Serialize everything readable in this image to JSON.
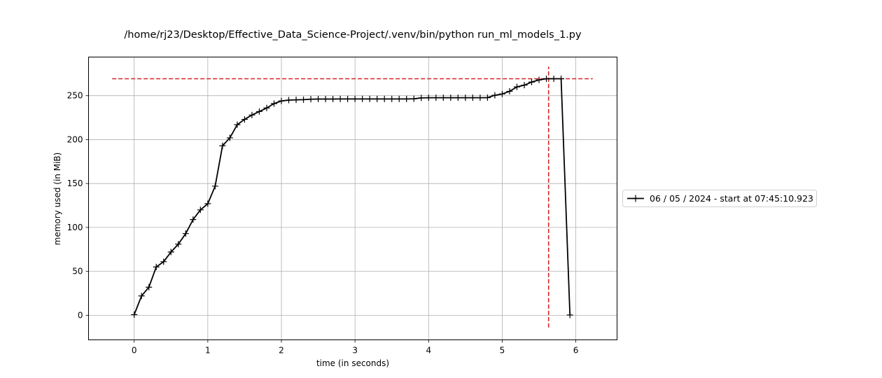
{
  "chart_data": {
    "type": "line",
    "title": "/home/rj23/Desktop/Effective_Data_Science-Project/.venv/bin/python run_ml_models_1.py",
    "xlabel": "time (in seconds)",
    "ylabel": "memory used (in MiB)",
    "xlim": [
      -0.62,
      6.56
    ],
    "ylim": [
      -28,
      294
    ],
    "xticks": [
      0,
      1,
      2,
      3,
      4,
      5,
      6
    ],
    "yticks": [
      0,
      50,
      100,
      150,
      200,
      250
    ],
    "grid": true,
    "legend_position": "outside-right",
    "colors": {
      "series": "#000000",
      "peak_marker": "#d62728",
      "grid": "#b0b0b0"
    },
    "peak": {
      "x": 5.63,
      "y": 269.3
    },
    "peak_hline_x_range": [
      -0.3,
      6.23
    ],
    "peak_vline_y_range": [
      -14,
      283
    ],
    "series": [
      {
        "name": "06 / 05 / 2024 - start at 07:45:10.923",
        "marker": "plus",
        "x": [
          0.0,
          0.1,
          0.2,
          0.3,
          0.4,
          0.5,
          0.6,
          0.7,
          0.8,
          0.9,
          1.0,
          1.1,
          1.2,
          1.3,
          1.4,
          1.5,
          1.6,
          1.7,
          1.8,
          1.9,
          2.0,
          2.1,
          2.2,
          2.3,
          2.4,
          2.5,
          2.6,
          2.7,
          2.8,
          2.9,
          3.0,
          3.1,
          3.2,
          3.3,
          3.4,
          3.5,
          3.6,
          3.7,
          3.8,
          3.9,
          4.0,
          4.1,
          4.2,
          4.3,
          4.4,
          4.5,
          4.6,
          4.7,
          4.8,
          4.9,
          5.0,
          5.1,
          5.2,
          5.3,
          5.4,
          5.5,
          5.6,
          5.7,
          5.8,
          5.92
        ],
        "y": [
          0.7,
          22.0,
          32.0,
          55.0,
          61.0,
          72.0,
          81.0,
          93.0,
          109.0,
          120.0,
          127.0,
          147.0,
          193.0,
          202.0,
          217.0,
          223.0,
          228.0,
          232.0,
          236.0,
          241.0,
          244.0,
          245.0,
          245.3,
          245.5,
          246.0,
          246.2,
          246.2,
          246.2,
          246.3,
          246.3,
          246.3,
          246.3,
          246.3,
          246.3,
          246.3,
          246.3,
          246.3,
          246.3,
          246.5,
          247.5,
          247.7,
          247.7,
          247.7,
          247.7,
          247.7,
          247.7,
          247.7,
          247.7,
          247.8,
          250.5,
          252.0,
          255.0,
          260.0,
          262.0,
          265.5,
          268.0,
          269.3,
          269.3,
          269.3,
          0.3
        ]
      }
    ]
  }
}
